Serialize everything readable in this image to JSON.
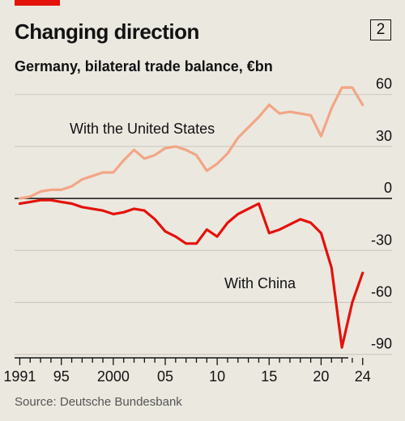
{
  "chart_data": {
    "type": "line",
    "title": "Changing direction",
    "chart_number": "2",
    "subtitle": "Germany, bilateral trade balance, €bn",
    "source": "Source: Deutsche Bundesbank",
    "x_tick_labels": [
      "1991",
      "95",
      "2000",
      "05",
      "10",
      "15",
      "20",
      "24"
    ],
    "x_tick_years": [
      1991,
      1995,
      2000,
      2005,
      2010,
      2015,
      2020,
      2024
    ],
    "y_tick_labels": [
      "60",
      "30",
      "0",
      "-30",
      "-60",
      "-90"
    ],
    "y_tick_values": [
      60,
      30,
      0,
      -30,
      -60,
      -90
    ],
    "ylim": [
      -92,
      65
    ],
    "xlim": [
      1990.5,
      2024.8
    ],
    "grid": true,
    "colors": {
      "usa": "#f2a685",
      "china": "#e3120b",
      "axis": "#121212",
      "grid": "#c9c5bc"
    },
    "series": [
      {
        "name": "With the United States",
        "key": "usa",
        "x": [
          1991,
          1992,
          1993,
          1994,
          1995,
          1996,
          1997,
          1998,
          1999,
          2000,
          2001,
          2002,
          2003,
          2004,
          2005,
          2006,
          2007,
          2008,
          2009,
          2010,
          2011,
          2012,
          2013,
          2014,
          2015,
          2016,
          2017,
          2018,
          2019,
          2020,
          2021,
          2022,
          2023,
          2024
        ],
        "y": [
          0,
          1,
          4,
          5,
          5,
          7,
          11,
          13,
          15,
          15,
          22,
          28,
          23,
          25,
          29,
          30,
          28,
          25,
          16,
          20,
          26,
          35,
          41,
          47,
          54,
          49,
          50,
          49,
          48,
          36,
          52,
          64,
          64,
          54
        ]
      },
      {
        "name": "With China",
        "key": "china",
        "x": [
          1991,
          1992,
          1993,
          1994,
          1995,
          1996,
          1997,
          1998,
          1999,
          2000,
          2001,
          2002,
          2003,
          2004,
          2005,
          2006,
          2007,
          2008,
          2009,
          2010,
          2011,
          2012,
          2013,
          2014,
          2015,
          2016,
          2017,
          2018,
          2019,
          2020,
          2021,
          2022,
          2023,
          2024
        ],
        "y": [
          -3,
          -2,
          -1,
          -1,
          -2,
          -3,
          -5,
          -6,
          -7,
          -9,
          -8,
          -6,
          -7,
          -12,
          -19,
          -22,
          -26,
          -26,
          -18,
          -22,
          -14,
          -9,
          -6,
          -3,
          -20,
          -18,
          -15,
          -12,
          -14,
          -20,
          -40,
          -86,
          -60,
          -43
        ]
      }
    ]
  }
}
